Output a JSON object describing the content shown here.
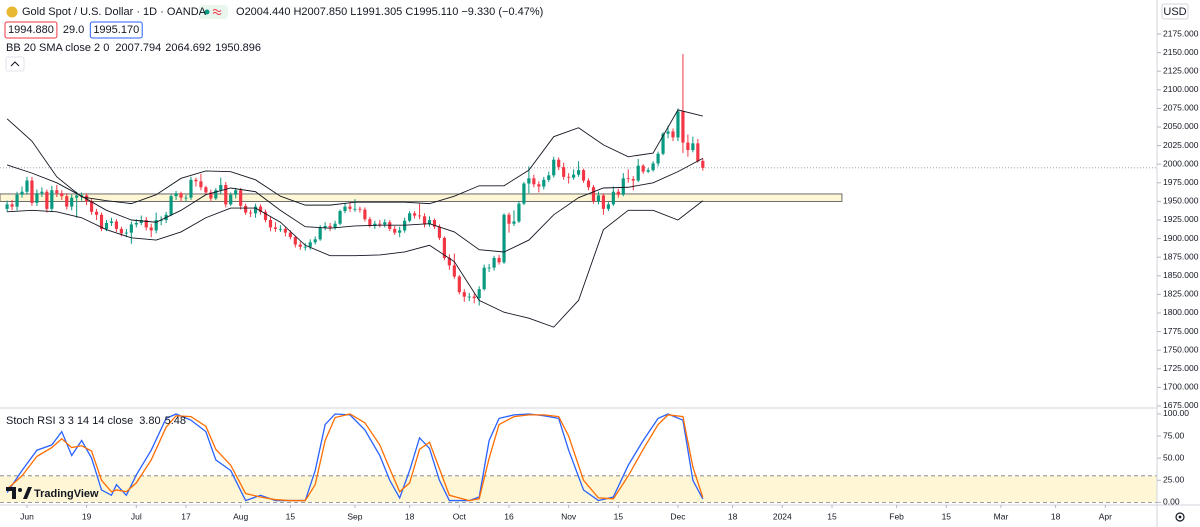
{
  "chart_data": {
    "type": "candlestick",
    "title": "Gold Spot / U.S. Dollar · 1D · OANDA",
    "legend": {
      "letters": [
        "O",
        "H",
        "L",
        "C"
      ],
      "values": [
        "2004.440",
        "2007.850",
        "1991.305",
        "1995.110"
      ],
      "change": "−9.330 (−0.47%)"
    },
    "quote": {
      "bid": "1994.880",
      "spread": "29.0",
      "ask": "1995.170"
    },
    "currency": "USD",
    "watermark": "TradingView",
    "up_color": "#089981",
    "down_color": "#f23645",
    "xlim": [
      -1.43,
      231.4
    ],
    "xticks": [
      {
        "value": 4,
        "label": "Jun"
      },
      {
        "value": 16,
        "label": "19"
      },
      {
        "value": 26,
        "label": "Jul"
      },
      {
        "value": 36,
        "label": "17"
      },
      {
        "value": 47,
        "label": "Aug"
      },
      {
        "value": 57,
        "label": "15"
      },
      {
        "value": 70,
        "label": "Sep"
      },
      {
        "value": 81,
        "label": "18"
      },
      {
        "value": 91,
        "label": "Oct"
      },
      {
        "value": 101,
        "label": "16"
      },
      {
        "value": 113,
        "label": "Nov"
      },
      {
        "value": 123,
        "label": "15"
      },
      {
        "value": 135,
        "label": "Dec"
      },
      {
        "value": 146,
        "label": "18"
      },
      {
        "value": 156,
        "label": "2024"
      },
      {
        "value": 166,
        "label": "15"
      },
      {
        "value": 179,
        "label": "Feb"
      },
      {
        "value": 189,
        "label": "15"
      },
      {
        "value": 200,
        "label": "Mar"
      },
      {
        "value": 211,
        "label": "18"
      },
      {
        "value": 221,
        "label": "Apr"
      }
    ],
    "ylim": [
      1672.3,
      2220.7
    ],
    "yticks": [
      {
        "value": 1675,
        "label": "1675.000"
      },
      {
        "value": 1700,
        "label": "1700.000"
      },
      {
        "value": 1725,
        "label": "1725.000"
      },
      {
        "value": 1750,
        "label": "1750.000"
      },
      {
        "value": 1775,
        "label": "1775.000"
      },
      {
        "value": 1800,
        "label": "1800.000"
      },
      {
        "value": 1825,
        "label": "1825.000"
      },
      {
        "value": 1850,
        "label": "1850.000"
      },
      {
        "value": 1875,
        "label": "1875.000"
      },
      {
        "value": 1900,
        "label": "1900.000"
      },
      {
        "value": 1925,
        "label": "1925.000"
      },
      {
        "value": 1950,
        "label": "1950.000"
      },
      {
        "value": 1975,
        "label": "1975.000"
      },
      {
        "value": 2000,
        "label": "2000.000"
      },
      {
        "value": 2025,
        "label": "2025.000"
      },
      {
        "value": 2050,
        "label": "2050.000"
      },
      {
        "value": 2075,
        "label": "2075.000"
      },
      {
        "value": 2100,
        "label": "2100.000"
      },
      {
        "value": 2125,
        "label": "2125.000"
      },
      {
        "value": 2150,
        "label": "2150.000"
      },
      {
        "value": 2175,
        "label": "2175.000"
      }
    ],
    "open": [
      1940,
      1946,
      1943,
      1959,
      1963,
      1978,
      1948,
      1961,
      1963,
      1940,
      1965,
      1961,
      1957,
      1943,
      1955,
      1958,
      1958,
      1950,
      1936,
      1932,
      1913,
      1921,
      1923,
      1913,
      1907,
      1908,
      1919,
      1921,
      1925,
      1915,
      1911,
      1925,
      1925,
      1932,
      1957,
      1961,
      1955,
      1955,
      1979,
      1977,
      1969,
      1962,
      1954,
      1965,
      1972,
      1946,
      1959,
      1965,
      1944,
      1935,
      1934,
      1943,
      1936,
      1925,
      1915,
      1913,
      1913,
      1908,
      1902,
      1892,
      1889,
      1889,
      1895,
      1899,
      1915,
      1917,
      1915,
      1920,
      1937,
      1943,
      1940,
      1940,
      1939,
      1926,
      1917,
      1920,
      1919,
      1922,
      1913,
      1908,
      1911,
      1924,
      1934,
      1931,
      1930,
      1919,
      1925,
      1916,
      1901,
      1874,
      1864,
      1849,
      1828,
      1822,
      1822,
      1820,
      1832,
      1861,
      1861,
      1874,
      1868,
      1932,
      1920,
      1923,
      1947,
      1974,
      1981,
      1973,
      1970,
      1979,
      1985,
      2006,
      1996,
      1983,
      1982,
      1986,
      1992,
      1978,
      1969,
      1950,
      1958,
      1940,
      1946,
      1963,
      1959,
      1981,
      1980,
      1978,
      1998,
      1990,
      1992,
      2001,
      2014,
      2041,
      2044,
      2036,
      2071,
      2029,
      2019,
      2028,
      2004.44
    ],
    "high": [
      1951,
      1952,
      1963,
      1970,
      1983,
      1983,
      1966,
      1969,
      1966,
      1971,
      1972,
      1965,
      1961,
      1959,
      1963,
      1962,
      1961,
      1953,
      1940,
      1935,
      1925,
      1928,
      1926,
      1916,
      1913,
      1923,
      1926,
      1931,
      1929,
      1920,
      1935,
      1930,
      1936,
      1960,
      1964,
      1963,
      1959,
      1983,
      1982,
      1987,
      1971,
      1966,
      1968,
      1982,
      1976,
      1962,
      1968,
      1968,
      1947,
      1939,
      1947,
      1946,
      1939,
      1929,
      1922,
      1918,
      1916,
      1911,
      1904,
      1896,
      1894,
      1899,
      1903,
      1918,
      1922,
      1921,
      1924,
      1939,
      1948,
      1949,
      1953,
      1943,
      1942,
      1929,
      1924,
      1925,
      1926,
      1925,
      1917,
      1916,
      1928,
      1937,
      1937,
      1947,
      1934,
      1930,
      1927,
      1919,
      1903,
      1879,
      1880,
      1851,
      1832,
      1827,
      1826,
      1836,
      1865,
      1866,
      1877,
      1878,
      1934,
      1935,
      1938,
      1950,
      1976,
      1997,
      1986,
      1977,
      1983,
      1990,
      2010,
      2009,
      2002,
      1988,
      1993,
      2004,
      1994,
      1981,
      1972,
      1963,
      1961,
      1949,
      1970,
      1967,
      1988,
      1993,
      1984,
      2007,
      2000,
      1995,
      2004,
      2017,
      2043,
      2052,
      2048,
      2075,
      2148,
      2040,
      2037,
      2034,
      2007.85
    ],
    "low": [
      1936,
      1938,
      1938,
      1955,
      1959,
      1944,
      1944,
      1956,
      1935,
      1936,
      1956,
      1952,
      1939,
      1938,
      1928,
      1951,
      1945,
      1932,
      1925,
      1910,
      1910,
      1917,
      1909,
      1903,
      1902,
      1893,
      1915,
      1918,
      1911,
      1902,
      1907,
      1918,
      1921,
      1930,
      1952,
      1950,
      1950,
      1952,
      1970,
      1965,
      1959,
      1950,
      1952,
      1960,
      1942,
      1944,
      1954,
      1939,
      1932,
      1929,
      1928,
      1932,
      1922,
      1910,
      1909,
      1909,
      1903,
      1899,
      1888,
      1885,
      1884,
      1885,
      1892,
      1897,
      1911,
      1910,
      1912,
      1918,
      1934,
      1936,
      1936,
      1935,
      1923,
      1915,
      1913,
      1915,
      1915,
      1910,
      1905,
      1902,
      1908,
      1922,
      1927,
      1926,
      1915,
      1916,
      1913,
      1898,
      1871,
      1858,
      1846,
      1825,
      1815,
      1816,
      1813,
      1810,
      1830,
      1855,
      1857,
      1865,
      1866,
      1908,
      1917,
      1921,
      1945,
      1961,
      1969,
      1962,
      1966,
      1976,
      1982,
      1992,
      1979,
      1974,
      1979,
      1983,
      1975,
      1965,
      1947,
      1946,
      1932,
      1937,
      1944,
      1955,
      1957,
      1975,
      1965,
      1976,
      1987,
      1988,
      1990,
      1997,
      2012,
      2035,
      2031,
      2031,
      2015,
      2010,
      2016,
      2002,
      1991.305
    ],
    "close": [
      1946,
      1943,
      1959,
      1963,
      1978,
      1948,
      1961,
      1963,
      1940,
      1965,
      1961,
      1957,
      1943,
      1955,
      1958,
      1958,
      1950,
      1936,
      1932,
      1913,
      1921,
      1923,
      1913,
      1907,
      1908,
      1919,
      1921,
      1925,
      1915,
      1911,
      1925,
      1925,
      1932,
      1957,
      1961,
      1955,
      1955,
      1979,
      1977,
      1969,
      1962,
      1954,
      1965,
      1972,
      1946,
      1959,
      1965,
      1944,
      1935,
      1934,
      1943,
      1936,
      1925,
      1915,
      1913,
      1913,
      1908,
      1902,
      1892,
      1889,
      1889,
      1895,
      1899,
      1915,
      1917,
      1915,
      1920,
      1937,
      1943,
      1940,
      1940,
      1939,
      1926,
      1917,
      1920,
      1919,
      1922,
      1913,
      1908,
      1911,
      1924,
      1934,
      1931,
      1930,
      1919,
      1925,
      1916,
      1901,
      1874,
      1864,
      1849,
      1828,
      1822,
      1822,
      1820,
      1832,
      1861,
      1861,
      1874,
      1868,
      1932,
      1920,
      1923,
      1947,
      1974,
      1981,
      1973,
      1970,
      1979,
      1985,
      2006,
      1996,
      1983,
      1982,
      1986,
      1992,
      1978,
      1969,
      1950,
      1958,
      1940,
      1946,
      1963,
      1959,
      1981,
      1980,
      1978,
      1998,
      1990,
      1992,
      2001,
      2014,
      2041,
      2044,
      2036,
      2071,
      2029,
      2019,
      2028,
      2004,
      1995.11
    ],
    "zone": {
      "low": 1950,
      "high": 1960,
      "x_end": 168,
      "color": "#fff6d5",
      "border": "#4a4a4a"
    },
    "bollinger": {
      "title": "BB 20 SMA close 2 0",
      "color": "#131722",
      "x": [
        0,
        5,
        10,
        15,
        20,
        25,
        30,
        35,
        40,
        45,
        50,
        55,
        60,
        65,
        70,
        75,
        80,
        85,
        90,
        95,
        100,
        105,
        110,
        115,
        120,
        125,
        130,
        135,
        140
      ],
      "basis": [
        1999,
        1988,
        1975,
        1957,
        1938,
        1925,
        1922,
        1938,
        1959,
        1968,
        1963,
        1938,
        1916,
        1914,
        1917,
        1918,
        1918,
        1920,
        1909,
        1885,
        1882,
        1898,
        1932,
        1955,
        1968,
        1969,
        1975,
        1990,
        2007.794
      ],
      "upper": [
        2061,
        2031,
        1983,
        1956,
        1951,
        1947,
        1959,
        1981,
        1991,
        1990,
        1979,
        1957,
        1945,
        1945,
        1949,
        1949,
        1949,
        1947,
        1957,
        1971,
        1971,
        1992,
        2037,
        2049,
        2026,
        2010,
        2015,
        2073,
        2064.692
      ],
      "lower": [
        1936,
        1938,
        1936,
        1928,
        1912,
        1901,
        1898,
        1909,
        1928,
        1941,
        1941,
        1922,
        1891,
        1877,
        1877,
        1878,
        1882,
        1891,
        1869,
        1817,
        1801,
        1793,
        1781,
        1817,
        1912,
        1938,
        1938,
        1925,
        1950.896
      ]
    },
    "stoch_rsi": {
      "title": "Stoch RSI 3 3 14 14 close",
      "ylim": [
        -3,
        104.5
      ],
      "yticks": [
        {
          "value": 0,
          "label": "0.00"
        },
        {
          "value": 25,
          "label": "25.00"
        },
        {
          "value": 50,
          "label": "50.00"
        },
        {
          "value": 75,
          "label": "75.00"
        },
        {
          "value": 100,
          "label": "100.00"
        }
      ],
      "band": [
        0,
        30
      ],
      "band_color": "#fff6d5",
      "x": [
        0,
        3,
        6,
        9,
        11,
        13,
        15,
        17,
        19,
        21,
        22,
        24,
        26,
        29,
        32,
        34,
        37,
        40,
        42,
        45,
        48,
        51,
        54,
        57,
        60,
        62,
        64,
        66,
        69,
        72,
        75,
        77,
        79,
        81,
        83,
        85,
        87,
        89,
        93,
        95,
        97,
        99,
        102,
        105,
        108,
        111,
        113,
        116,
        119,
        122,
        125,
        128,
        131,
        133,
        136,
        138,
        140
      ],
      "series": [
        {
          "color": "#2962ff",
          "last_label": "3.80",
          "values": [
            11,
            36,
            59,
            65,
            80,
            53,
            70,
            50,
            14,
            8,
            20,
            8,
            31,
            59,
            95,
            100,
            93,
            80,
            48,
            36,
            2,
            8,
            2,
            2,
            2,
            36,
            88,
            100,
            99,
            82,
            53,
            25,
            5,
            36,
            73,
            61,
            25,
            2,
            2,
            6,
            70,
            95,
            99,
            100,
            98,
            95,
            59,
            14,
            2,
            6,
            42,
            70,
            95,
            100,
            93,
            25,
            3.8
          ]
        },
        {
          "color": "#ff6d00",
          "last_label": "5.48",
          "values": [
            15,
            30,
            52,
            62,
            72,
            62,
            64,
            58,
            25,
            12,
            14,
            12,
            22,
            48,
            85,
            98,
            97,
            86,
            60,
            42,
            10,
            6,
            3,
            2,
            2,
            20,
            70,
            96,
            100,
            90,
            65,
            38,
            12,
            22,
            60,
            68,
            38,
            8,
            2,
            4,
            50,
            88,
            97,
            99,
            99,
            97,
            75,
            25,
            5,
            4,
            30,
            60,
            88,
            99,
            97,
            40,
            5.48
          ]
        }
      ]
    }
  }
}
